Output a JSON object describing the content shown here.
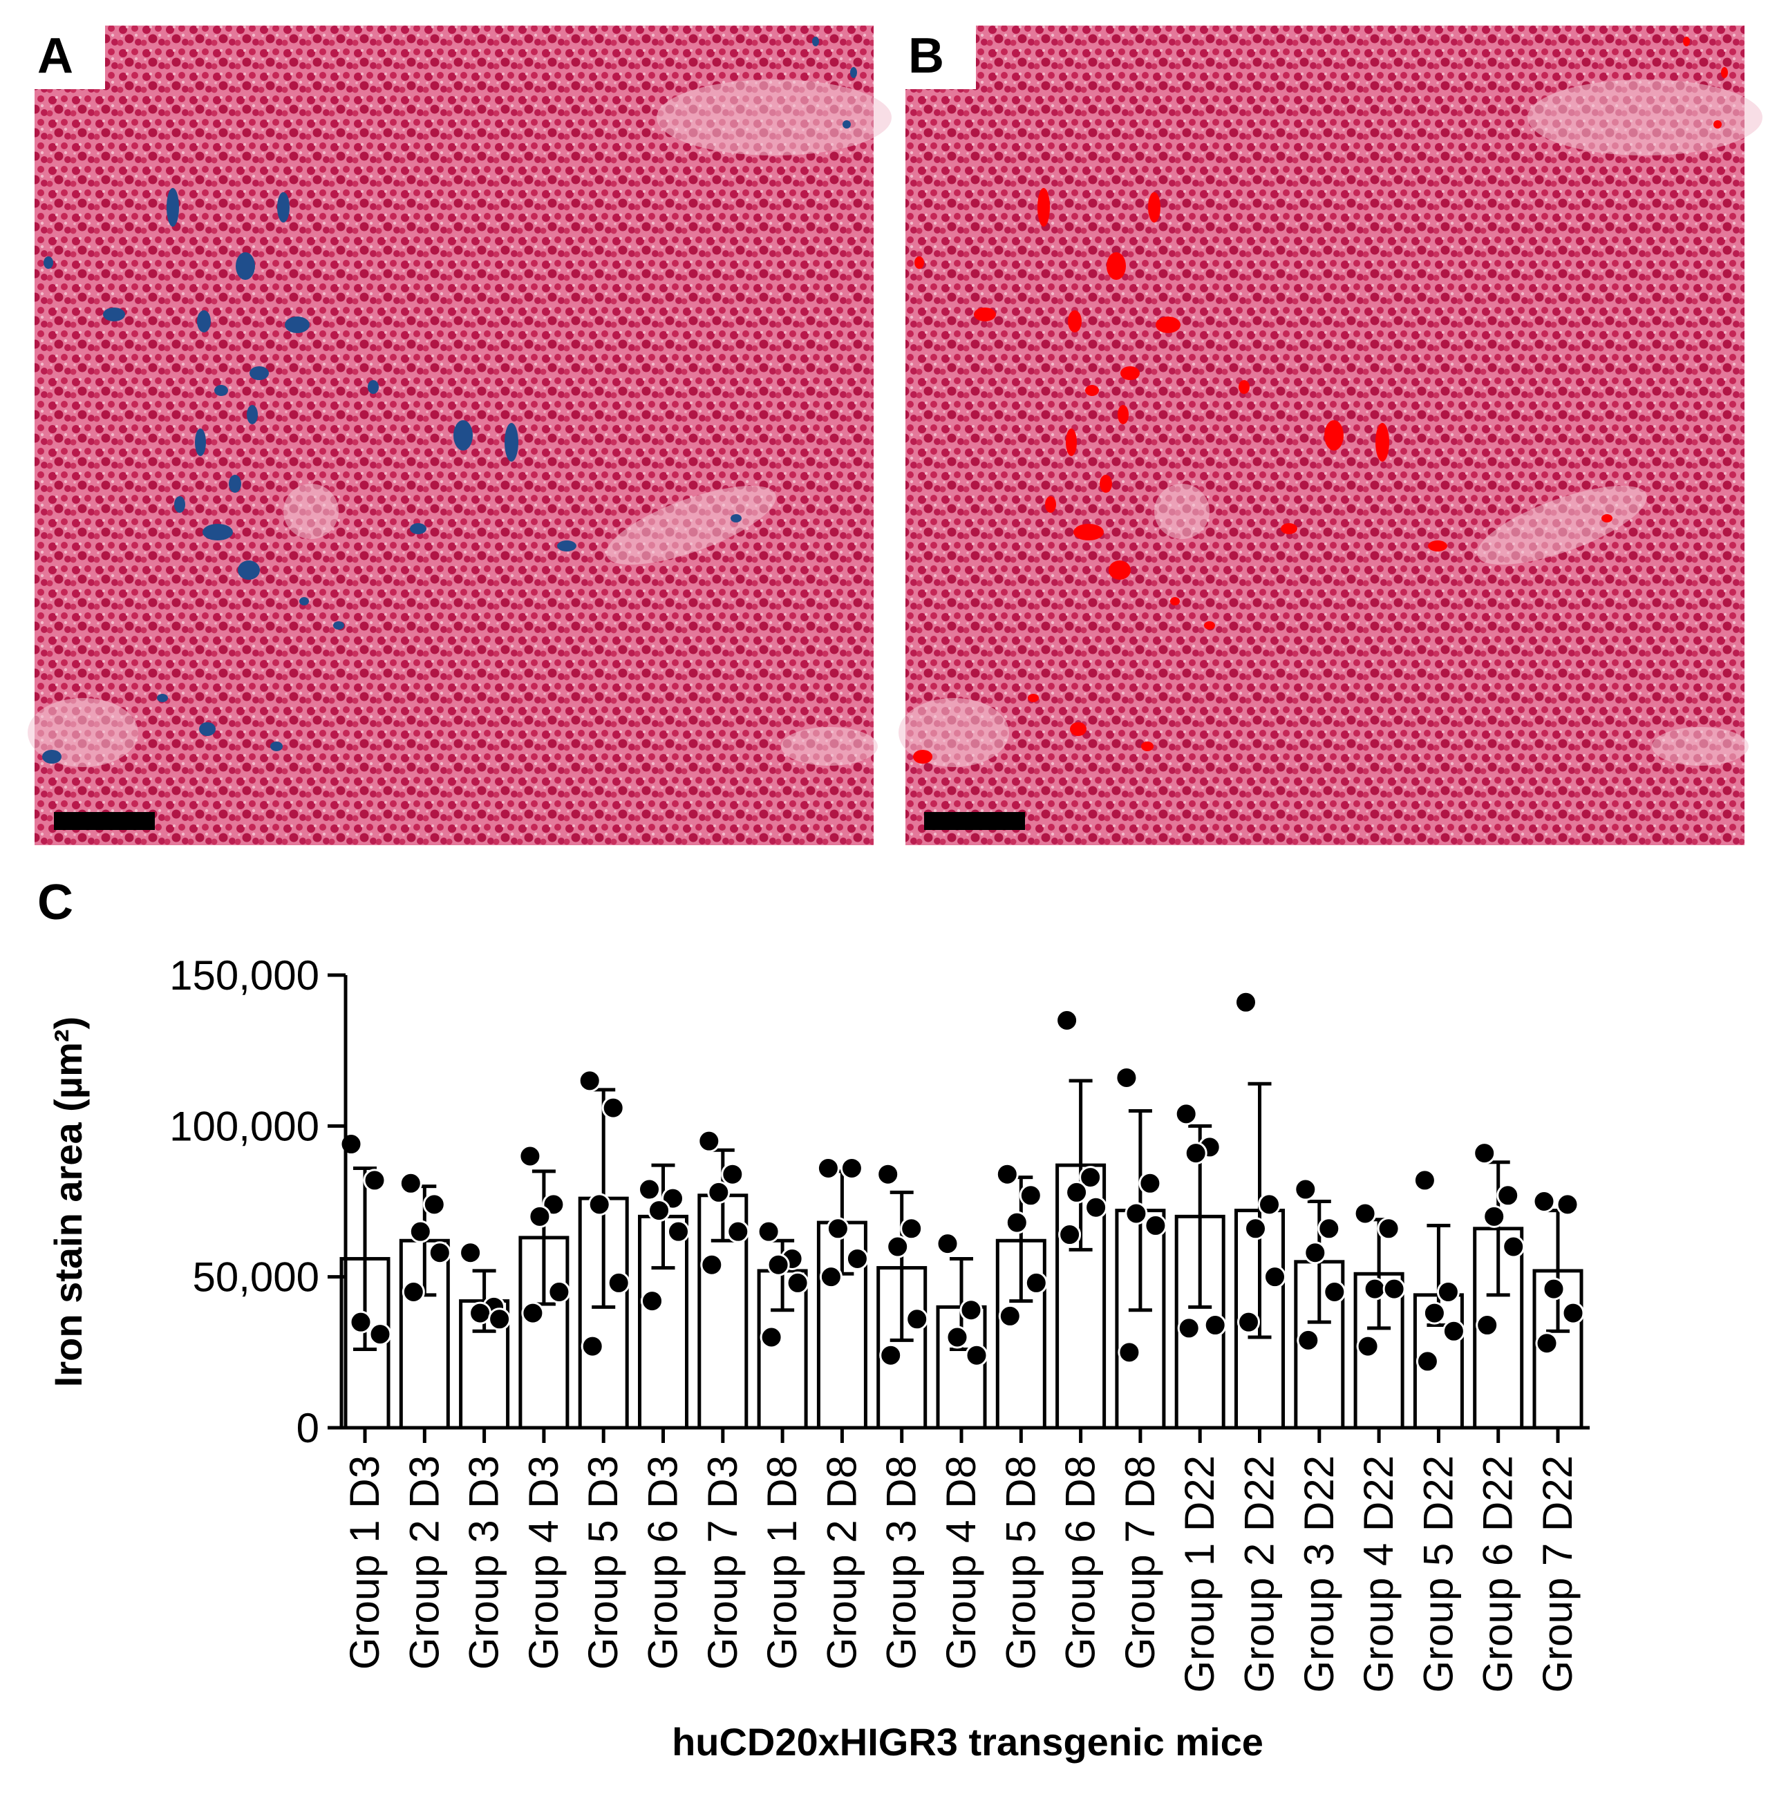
{
  "panels": {
    "a": {
      "letter": "A"
    },
    "b": {
      "letter": "B"
    },
    "c": {
      "letter": "C"
    }
  },
  "colors": {
    "tissue_base": "#d7456f",
    "tissue_light": "#f0a9c0",
    "iron_stain": "#1f4e8c",
    "iron_overlay": "#ff0000",
    "scale_bar": "#000000"
  },
  "chart_data": {
    "type": "bar",
    "title": "",
    "xlabel": "huCD20xHIGR3 transgenic mice",
    "ylabel": "Iron stain area (µm²)",
    "ylim": [
      0,
      150000
    ],
    "yticks": [
      0,
      50000,
      100000,
      150000
    ],
    "ytick_labels": [
      "0",
      "50,000",
      "100,000",
      "150,000"
    ],
    "grid": false,
    "categories": [
      "Group 1 D3",
      "Group 2 D3",
      "Group 3 D3",
      "Group 4 D3",
      "Group 5 D3",
      "Group 6 D3",
      "Group 7 D3",
      "Group 1 D8",
      "Group 2 D8",
      "Group 3 D8",
      "Group 4 D8",
      "Group 5 D8",
      "Group 6 D8",
      "Group 7 D8",
      "Group 1 D22",
      "Group 2 D22",
      "Group 3 D22",
      "Group 4 D22",
      "Group 5 D22",
      "Group 6 D22",
      "Group 7 D22"
    ],
    "values": [
      56000,
      62000,
      42000,
      63000,
      76000,
      70000,
      77000,
      52000,
      68000,
      53000,
      40000,
      62000,
      87000,
      72000,
      70000,
      72000,
      55000,
      51000,
      44000,
      66000,
      52000
    ],
    "error_plus": [
      30000,
      18000,
      10000,
      22000,
      36000,
      17000,
      15000,
      10000,
      17000,
      25000,
      16000,
      21000,
      28000,
      33000,
      30000,
      42000,
      20000,
      18000,
      23000,
      22000,
      20000
    ],
    "error_minus": [
      30000,
      18000,
      10000,
      22000,
      36000,
      17000,
      15000,
      13000,
      17000,
      24000,
      14000,
      20000,
      28000,
      33000,
      30000,
      42000,
      20000,
      18000,
      10000,
      22000,
      20000
    ],
    "points": [
      [
        94000,
        82000,
        35000,
        31000
      ],
      [
        81000,
        74000,
        65000,
        58000,
        45000
      ],
      [
        58000,
        40000,
        38000,
        36000
      ],
      [
        90000,
        74000,
        70000,
        45000,
        38000
      ],
      [
        115000,
        106000,
        74000,
        48000,
        27000
      ],
      [
        79000,
        76000,
        72000,
        65000,
        42000
      ],
      [
        95000,
        84000,
        78000,
        65000,
        54000
      ],
      [
        65000,
        56000,
        54000,
        48000,
        30000
      ],
      [
        86000,
        86000,
        66000,
        56000,
        50000
      ],
      [
        84000,
        66000,
        60000,
        36000,
        24000
      ],
      [
        61000,
        39000,
        30000,
        24000
      ],
      [
        84000,
        77000,
        68000,
        48000,
        37000
      ],
      [
        135000,
        83000,
        78000,
        73000,
        64000
      ],
      [
        116000,
        81000,
        71000,
        67000,
        25000
      ],
      [
        104000,
        93000,
        91000,
        34000,
        33000
      ],
      [
        141000,
        74000,
        66000,
        50000,
        35000
      ],
      [
        79000,
        66000,
        58000,
        45000,
        29000
      ],
      [
        71000,
        66000,
        46000,
        46000,
        27000
      ],
      [
        82000,
        45000,
        38000,
        32000,
        22000
      ],
      [
        91000,
        77000,
        70000,
        60000,
        34000
      ],
      [
        75000,
        74000,
        46000,
        38000,
        28000
      ]
    ]
  }
}
